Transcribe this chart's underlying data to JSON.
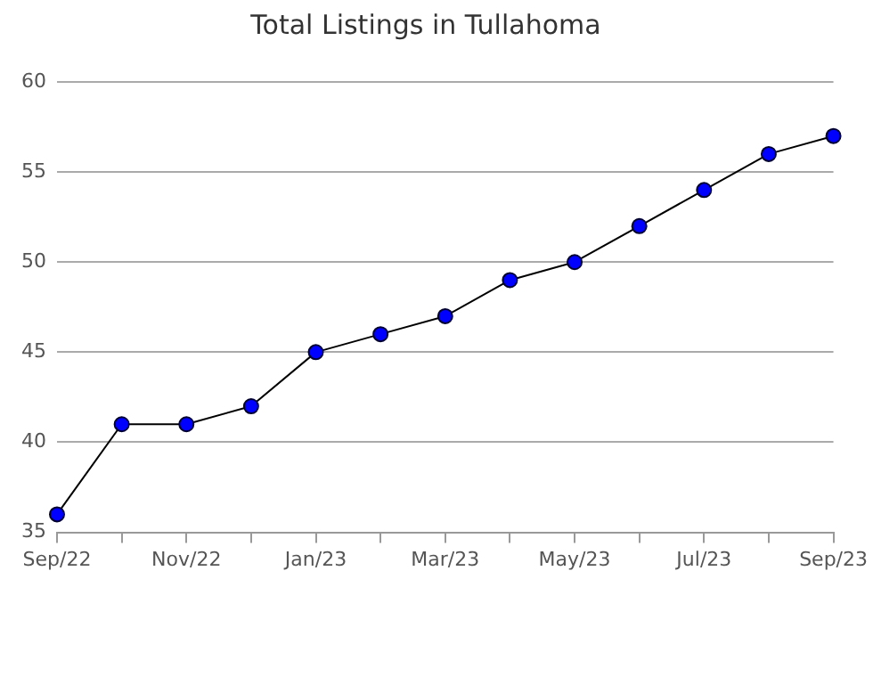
{
  "chart_data": {
    "type": "line",
    "title": "Total Listings in Tullahoma",
    "categories": [
      "Sep/22",
      null,
      "Nov/22",
      null,
      "Jan/23",
      null,
      "Mar/23",
      null,
      "May/23",
      null,
      "Jul/23",
      null,
      "Sep/23"
    ],
    "series": [
      {
        "color": "#000000",
        "values": [
          36,
          41,
          41,
          42,
          45,
          46,
          47,
          49,
          50,
          52,
          54,
          56,
          57
        ]
      }
    ],
    "ylim": [
      35,
      60
    ],
    "yticks": [
      35,
      40,
      45,
      50,
      55,
      60
    ],
    "grid": "y",
    "legend": false,
    "marker": "circle",
    "line_style": "solid"
  }
}
